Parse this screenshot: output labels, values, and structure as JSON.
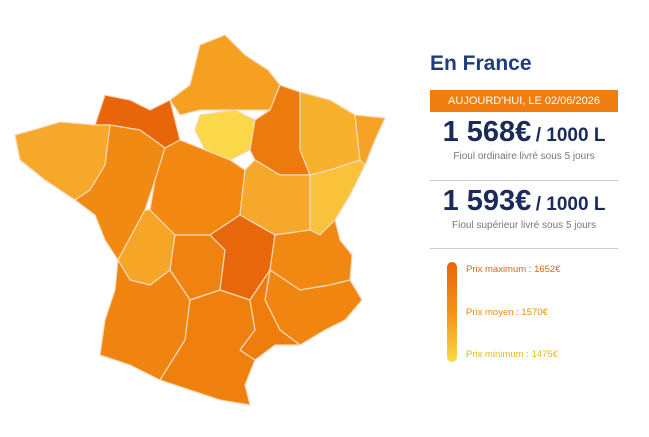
{
  "heading": "En France",
  "date_banner": "AUJOURD'HUI, LE 02/06/2026",
  "prices": [
    {
      "amount": "1 568€",
      "unit": "/ 1000 L",
      "caption": "Fioul ordinaire livré sous 5 jours"
    },
    {
      "amount": "1 593€",
      "unit": "/ 1000 L",
      "caption": "Fioul supérieur livré sous 5 jours"
    }
  ],
  "legend": [
    "Prix maximum : 1652€",
    "Prix moyen : 1570€",
    "Prix minimum : 1475€"
  ]
}
